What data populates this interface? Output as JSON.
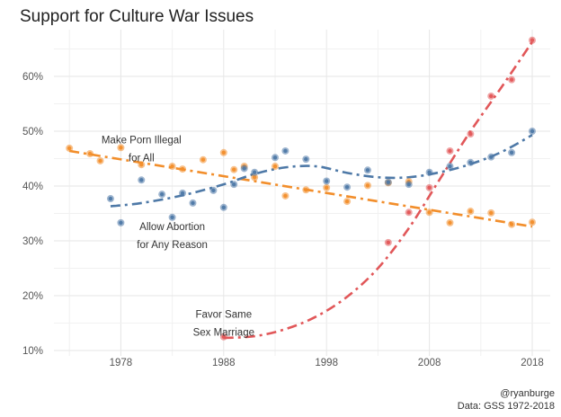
{
  "chart_data": {
    "type": "scatter",
    "title": "Support for Culture War Issues",
    "xlabel": "",
    "ylabel": "",
    "xlim": [
      1970.7,
      2020.6
    ],
    "ylim": [
      9.5,
      67.5
    ],
    "x_ticks": [
      1978,
      1988,
      1998,
      2008,
      2018
    ],
    "x_tick_labels": [
      "1978",
      "1988",
      "1998",
      "2008",
      "2018"
    ],
    "y_ticks": [
      10,
      20,
      30,
      40,
      50,
      60
    ],
    "y_tick_labels": [
      "10%",
      "20%",
      "30%",
      "40%",
      "50%",
      "60%"
    ],
    "grid": true,
    "legend": "none",
    "series": [
      {
        "name": "Make Porn Illegal for All",
        "color": "#f28e2b",
        "trend": "linear",
        "trend_style": "dashdot",
        "points": [
          {
            "x": 1973,
            "y": 46.9
          },
          {
            "x": 1975,
            "y": 45.9
          },
          {
            "x": 1976,
            "y": 44.6
          },
          {
            "x": 1978,
            "y": 47.0
          },
          {
            "x": 1980,
            "y": 43.9
          },
          {
            "x": 1983,
            "y": 43.6
          },
          {
            "x": 1984,
            "y": 43.1
          },
          {
            "x": 1986,
            "y": 44.8
          },
          {
            "x": 1988,
            "y": 46.1
          },
          {
            "x": 1989,
            "y": 43.0
          },
          {
            "x": 1990,
            "y": 43.6
          },
          {
            "x": 1991,
            "y": 41.6
          },
          {
            "x": 1993,
            "y": 43.6
          },
          {
            "x": 1994,
            "y": 38.2
          },
          {
            "x": 1996,
            "y": 39.3
          },
          {
            "x": 1998,
            "y": 39.7
          },
          {
            "x": 2000,
            "y": 37.2
          },
          {
            "x": 2002,
            "y": 40.1
          },
          {
            "x": 2004,
            "y": 40.6
          },
          {
            "x": 2006,
            "y": 40.8
          },
          {
            "x": 2008,
            "y": 35.2
          },
          {
            "x": 2010,
            "y": 33.3
          },
          {
            "x": 2012,
            "y": 35.4
          },
          {
            "x": 2014,
            "y": 35.1
          },
          {
            "x": 2016,
            "y": 33.0
          },
          {
            "x": 2018,
            "y": 33.4
          }
        ],
        "trend_line": [
          {
            "x": 1973,
            "y": 46.4
          },
          {
            "x": 2018,
            "y": 32.6
          }
        ]
      },
      {
        "name": "Allow Abortion for Any Reason",
        "color": "#4e79a7",
        "trend": "loess",
        "trend_style": "dashdot",
        "points": [
          {
            "x": 1977,
            "y": 37.7
          },
          {
            "x": 1978,
            "y": 33.3
          },
          {
            "x": 1980,
            "y": 41.1
          },
          {
            "x": 1982,
            "y": 38.5
          },
          {
            "x": 1983,
            "y": 34.3
          },
          {
            "x": 1984,
            "y": 38.7
          },
          {
            "x": 1985,
            "y": 36.9
          },
          {
            "x": 1987,
            "y": 39.2
          },
          {
            "x": 1988,
            "y": 36.1
          },
          {
            "x": 1989,
            "y": 40.3
          },
          {
            "x": 1990,
            "y": 43.2
          },
          {
            "x": 1991,
            "y": 42.5
          },
          {
            "x": 1993,
            "y": 45.2
          },
          {
            "x": 1994,
            "y": 46.4
          },
          {
            "x": 1996,
            "y": 44.9
          },
          {
            "x": 1998,
            "y": 40.9
          },
          {
            "x": 2000,
            "y": 39.8
          },
          {
            "x": 2002,
            "y": 42.9
          },
          {
            "x": 2004,
            "y": 40.7
          },
          {
            "x": 2006,
            "y": 40.3
          },
          {
            "x": 2008,
            "y": 42.5
          },
          {
            "x": 2010,
            "y": 43.6
          },
          {
            "x": 2012,
            "y": 44.3
          },
          {
            "x": 2014,
            "y": 45.3
          },
          {
            "x": 2016,
            "y": 46.1
          },
          {
            "x": 2018,
            "y": 50.0
          }
        ],
        "trend_line": [
          {
            "x": 1977,
            "y": 36.3
          },
          {
            "x": 1980,
            "y": 36.9
          },
          {
            "x": 1984,
            "y": 38.3
          },
          {
            "x": 1988,
            "y": 40.3
          },
          {
            "x": 1991,
            "y": 42.2
          },
          {
            "x": 1994,
            "y": 43.4
          },
          {
            "x": 1997,
            "y": 43.6
          },
          {
            "x": 2000,
            "y": 42.4
          },
          {
            "x": 2003,
            "y": 41.6
          },
          {
            "x": 2006,
            "y": 41.6
          },
          {
            "x": 2009,
            "y": 42.5
          },
          {
            "x": 2012,
            "y": 44.0
          },
          {
            "x": 2015,
            "y": 46.2
          },
          {
            "x": 2018,
            "y": 49.3
          }
        ]
      },
      {
        "name": "Favor Same Sex Marriage",
        "color": "#e15759",
        "trend": "loess",
        "trend_style": "dashdot",
        "points": [
          {
            "x": 1988,
            "y": 12.5
          },
          {
            "x": 2004,
            "y": 29.7
          },
          {
            "x": 2006,
            "y": 35.2
          },
          {
            "x": 2008,
            "y": 39.7
          },
          {
            "x": 2010,
            "y": 46.4
          },
          {
            "x": 2012,
            "y": 49.5
          },
          {
            "x": 2014,
            "y": 56.4
          },
          {
            "x": 2016,
            "y": 59.4
          },
          {
            "x": 2018,
            "y": 66.6
          }
        ],
        "trend_line": [
          {
            "x": 1988,
            "y": 12.3
          },
          {
            "x": 1991,
            "y": 12.6
          },
          {
            "x": 1994,
            "y": 13.9
          },
          {
            "x": 1997,
            "y": 16.2
          },
          {
            "x": 2000,
            "y": 19.8
          },
          {
            "x": 2003,
            "y": 25.0
          },
          {
            "x": 2006,
            "y": 32.3
          },
          {
            "x": 2009,
            "y": 41.2
          },
          {
            "x": 2012,
            "y": 50.0
          },
          {
            "x": 2015,
            "y": 58.0
          },
          {
            "x": 2018,
            "y": 66.3
          }
        ]
      }
    ],
    "annotations": [
      {
        "lines": [
          "Make Porn Illegal",
          "for All"
        ],
        "x": 1980,
        "y": 47.8
      },
      {
        "lines": [
          "Allow Abortion",
          "for Any Reason"
        ],
        "x": 1983,
        "y": 32.0
      },
      {
        "lines": [
          "Favor Same",
          "Sex Marriage"
        ],
        "x": 1988,
        "y": 16.0
      }
    ],
    "caption": [
      "@ryanburge",
      "Data: GSS 1972-2018"
    ]
  }
}
